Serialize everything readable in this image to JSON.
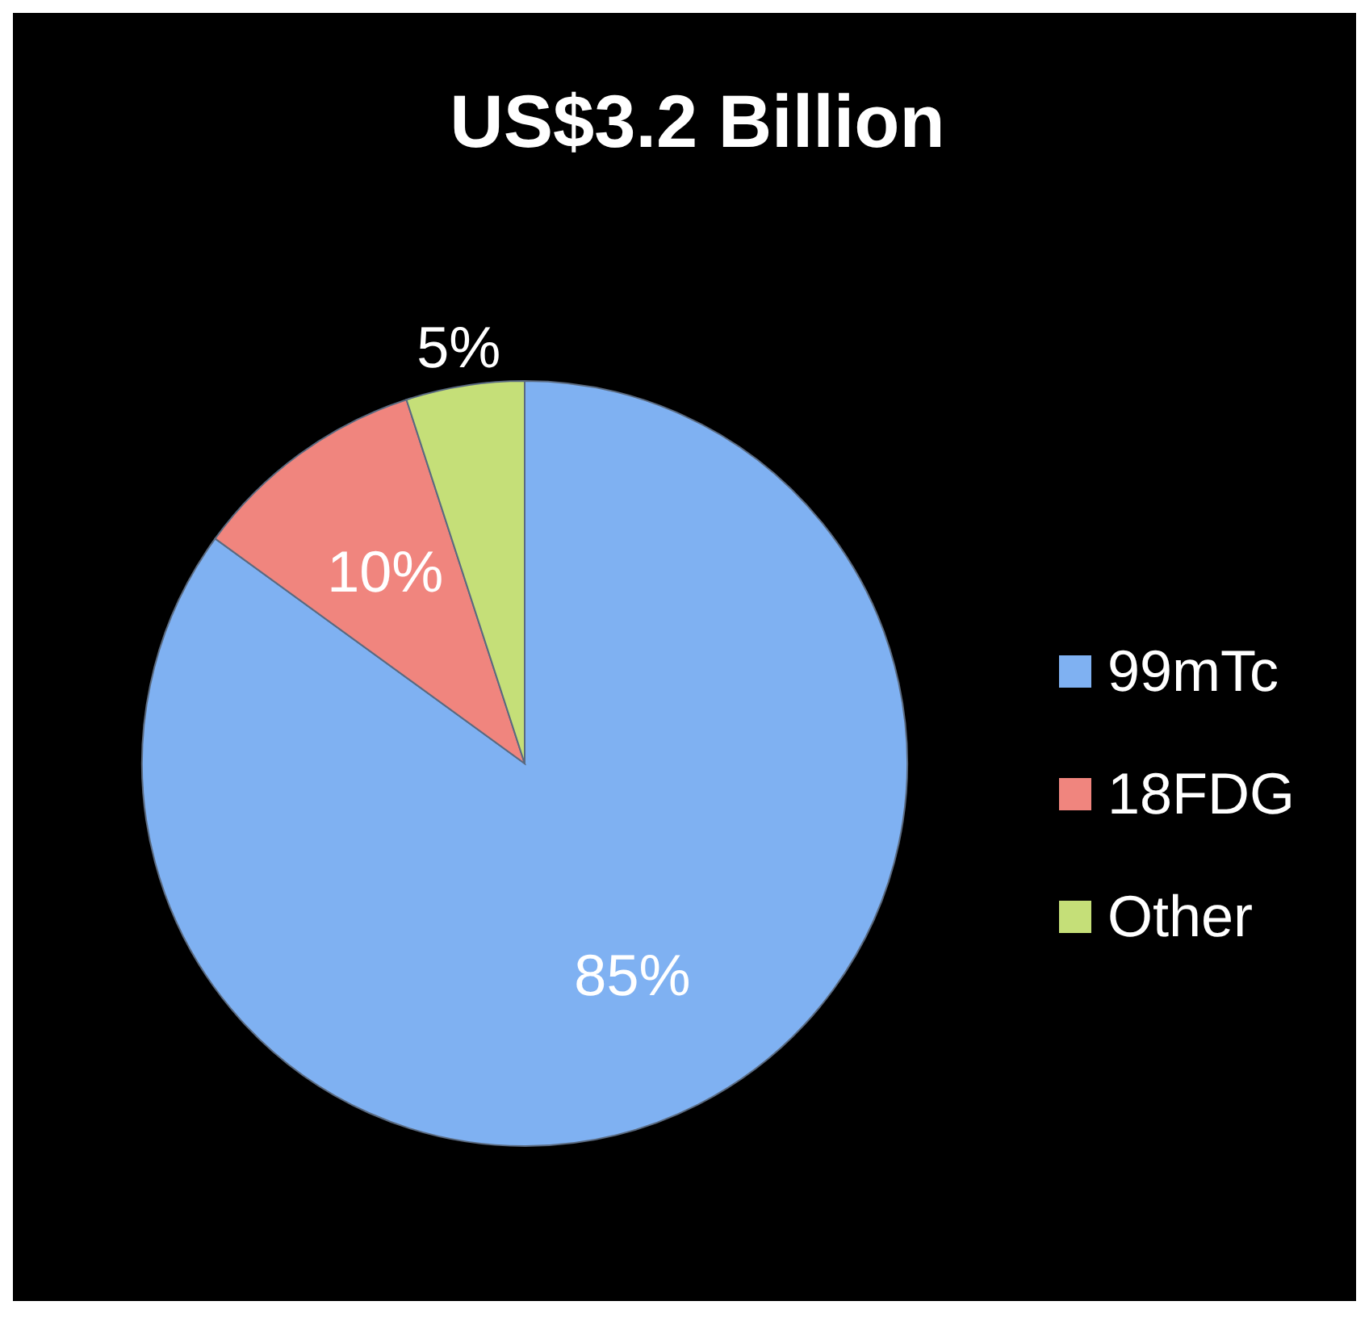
{
  "chart_data": {
    "type": "pie",
    "title": "US$3.2 Billion",
    "categories": [
      "99mTc",
      "18FDG",
      "Other"
    ],
    "values": [
      85,
      10,
      5
    ],
    "colors": [
      "#7fb1f2",
      "#f0857e",
      "#c5df78"
    ],
    "value_labels": [
      "85%",
      "10%",
      "5%"
    ],
    "legend": "right"
  }
}
